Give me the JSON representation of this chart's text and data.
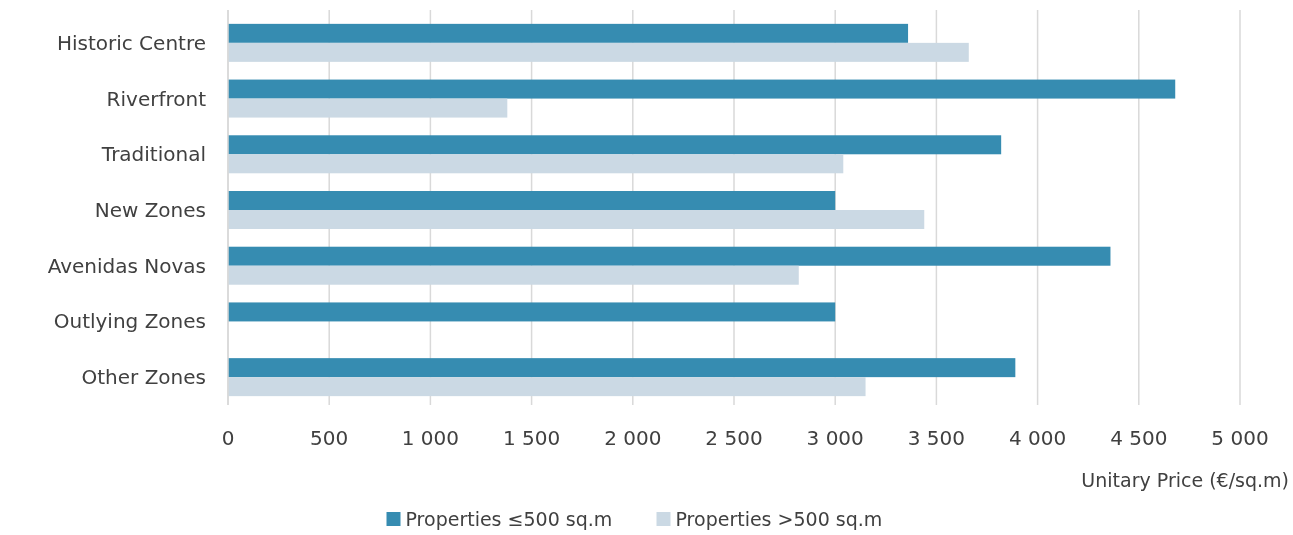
{
  "chart_data": {
    "type": "bar",
    "orientation": "horizontal",
    "xlabel": "Unitary Price (€/sq.m)",
    "categories": [
      "Historic Centre",
      "Riverfront",
      "Traditional",
      "New Zones",
      "Avenidas Novas",
      "Outlying Zones",
      "Other Zones"
    ],
    "series": [
      {
        "name": "Properties ≤500 sq.m",
        "color": "#368cb1",
        "values": [
          3360,
          4680,
          3820,
          3000,
          4360,
          3000,
          3890
        ]
      },
      {
        "name": "Properties >500 sq.m",
        "color": "#cbd9e4",
        "values": [
          3660,
          1380,
          3040,
          3440,
          2820,
          null,
          3150
        ]
      }
    ],
    "xlim": [
      0,
      5000
    ],
    "xticks": [
      0,
      500,
      {
        "value": 1000,
        "label": "1 000"
      },
      {
        "value": 1500,
        "label": "1 500"
      },
      {
        "value": 2000,
        "label": "2 000"
      },
      {
        "value": 2500,
        "label": "2 500"
      },
      {
        "value": 3000,
        "label": "3 000"
      },
      {
        "value": 3500,
        "label": "3 500"
      },
      {
        "value": 4000,
        "label": "4 000"
      },
      {
        "value": 4500,
        "label": "4 500"
      },
      {
        "value": 5000,
        "label": "5 000"
      }
    ],
    "grid": "x",
    "legend": "bottom"
  }
}
